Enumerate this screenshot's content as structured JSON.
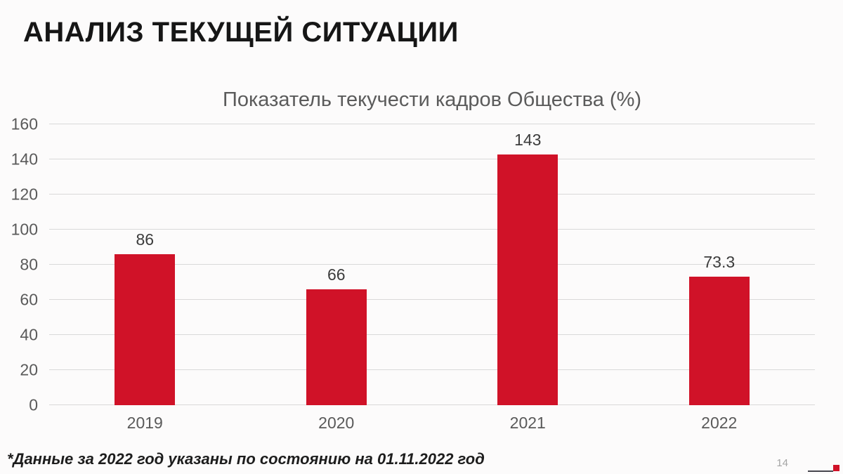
{
  "slide": {
    "title": "АНАЛИЗ ТЕКУЩЕЙ СИТУАЦИИ",
    "footnote": "*Данные за 2022 год указаны по состоянию на 01.11.2022 год",
    "page_number": "14"
  },
  "chart_data": {
    "type": "bar",
    "title": "Показатель текучести кадров Общества (%)",
    "categories": [
      "2019",
      "2020",
      "2021",
      "2022"
    ],
    "values": [
      86,
      66,
      143,
      73.3
    ],
    "value_labels": [
      "86",
      "66",
      "143",
      "73.3"
    ],
    "xlabel": "",
    "ylabel": "",
    "ylim": [
      0,
      160
    ],
    "yticks": [
      0,
      20,
      40,
      60,
      80,
      100,
      120,
      140,
      160
    ],
    "grid": true,
    "legend": "none"
  },
  "colors": {
    "bar": "#d01228",
    "grid": "#d9d9d9",
    "axis_text": "#5a5a5a",
    "chart_title_text": "#5b5b5b",
    "data_label_text": "#3c3c3c",
    "accent_red": "#d01228",
    "logo_line": "#46464e"
  }
}
